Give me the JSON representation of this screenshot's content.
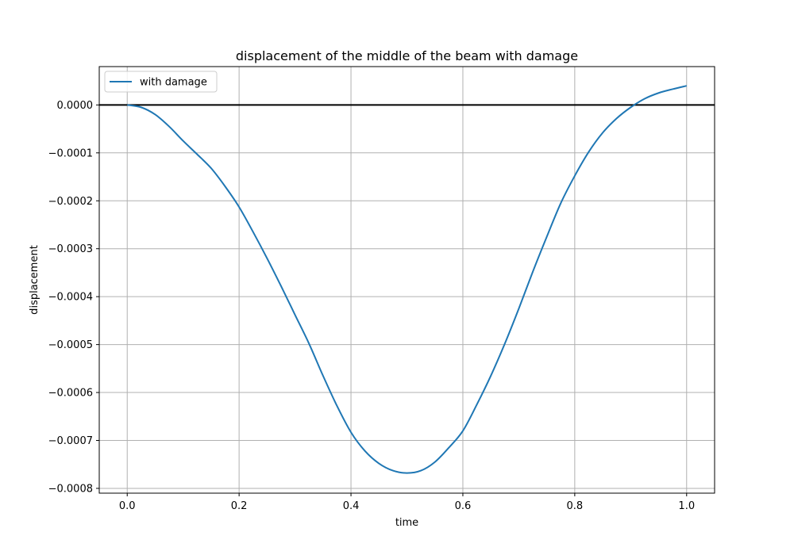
{
  "chart_data": {
    "type": "line",
    "title": "displacement of the middle of the beam with damage",
    "xlabel": "time",
    "ylabel": "displacement",
    "xlim": [
      -0.05,
      1.05
    ],
    "ylim": [
      -0.00081,
      8e-05
    ],
    "xticks": [
      0.0,
      0.2,
      0.4,
      0.6,
      0.8,
      1.0
    ],
    "xtick_labels": [
      "0.0",
      "0.2",
      "0.4",
      "0.6",
      "0.8",
      "1.0"
    ],
    "yticks": [
      0.0,
      -0.0001,
      -0.0002,
      -0.0003,
      -0.0004,
      -0.0005,
      -0.0006,
      -0.0007,
      -0.0008
    ],
    "ytick_labels": [
      "0.0000",
      "−0.0001",
      "−0.0002",
      "−0.0003",
      "−0.0004",
      "−0.0005",
      "−0.0006",
      "−0.0007",
      "−0.0008"
    ],
    "grid": true,
    "legend": "upper-left",
    "reference_line": {
      "y": 0.0,
      "color": "#000000"
    },
    "series": [
      {
        "name": "with damage",
        "color": "#1f77b4",
        "x": [
          0.0,
          0.025,
          0.05,
          0.075,
          0.1,
          0.125,
          0.15,
          0.175,
          0.2,
          0.225,
          0.25,
          0.275,
          0.3,
          0.325,
          0.35,
          0.375,
          0.4,
          0.425,
          0.45,
          0.475,
          0.5,
          0.525,
          0.55,
          0.575,
          0.6,
          0.625,
          0.65,
          0.675,
          0.7,
          0.725,
          0.75,
          0.775,
          0.8,
          0.825,
          0.85,
          0.875,
          0.9,
          0.925,
          0.95,
          0.975,
          1.0
        ],
        "y": [
          0.0,
          -5e-06,
          -2e-05,
          -4.5e-05,
          -7.5e-05,
          -0.000103,
          -0.000132,
          -0.00017,
          -0.000213,
          -0.000265,
          -0.00032,
          -0.000378,
          -0.000438,
          -0.000498,
          -0.000565,
          -0.000628,
          -0.000683,
          -0.000722,
          -0.000748,
          -0.000763,
          -0.000768,
          -0.000763,
          -0.000745,
          -0.000715,
          -0.00068,
          -0.000625,
          -0.000565,
          -0.000498,
          -0.000425,
          -0.000348,
          -0.000275,
          -0.000205,
          -0.000148,
          -9.8e-05,
          -5.8e-05,
          -2.8e-05,
          -5e-06,
          1.3e-05,
          2.5e-05,
          3.3e-05,
          4e-05
        ]
      }
    ]
  }
}
